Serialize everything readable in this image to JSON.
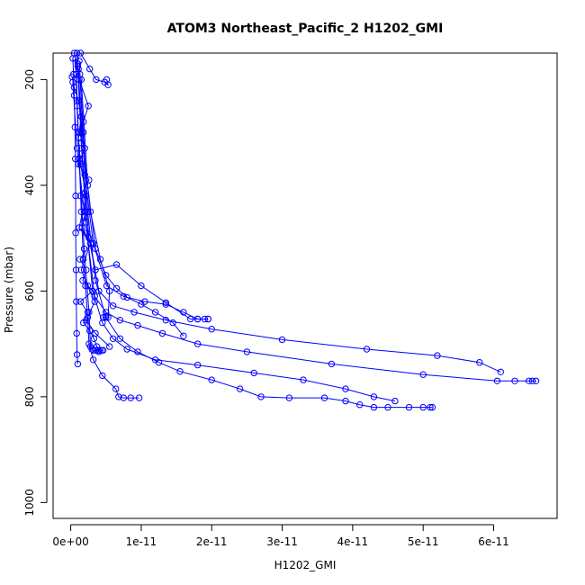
{
  "chart_data": {
    "type": "scatter",
    "title": "ATOM3 Northeast_Pacific_2 H1202_GMI",
    "xlabel": "H1202_GMI",
    "ylabel": "Pressure (mbar)",
    "xlim": [
      -2.5e-12,
      6.9e-11
    ],
    "ylim": [
      1030,
      150
    ],
    "y_reversed": true,
    "x_ticks": [
      0,
      1e-11,
      2e-11,
      3e-11,
      4e-11,
      5e-11,
      6e-11
    ],
    "x_tick_labels": [
      "0e+00",
      "1e-11",
      "2e-11",
      "3e-11",
      "4e-11",
      "5e-11",
      "6e-11"
    ],
    "y_ticks": [
      200,
      400,
      600,
      800,
      1000
    ],
    "y_tick_labels": [
      "200",
      "400",
      "600",
      "800",
      "1000"
    ],
    "grid": false,
    "color": "#0000ff",
    "series": [
      {
        "x": [
          7e-13,
          9e-13,
          1.2e-12,
          1.5e-12,
          1.8e-12,
          2.1e-12,
          2.4e-12,
          2.6e-12,
          3.2e-12,
          4.5e-12,
          6.4e-12,
          6.8e-12,
          7.5e-12,
          8.5e-12,
          9.7e-12
        ],
        "y": [
          160,
          250,
          350,
          450,
          540,
          590,
          650,
          700,
          730,
          760,
          785,
          800,
          802,
          802,
          802
        ]
      },
      {
        "x": [
          1.2e-12,
          1.8e-12,
          2.4e-12,
          3.5e-12,
          5e-12,
          7e-12,
          9.5e-12,
          1.25e-11,
          1.55e-11,
          2e-11,
          2.4e-11,
          2.7e-11,
          3.1e-11,
          3.6e-11,
          3.9e-11,
          4.1e-11,
          4.3e-11,
          4.5e-11,
          4.8e-11,
          5e-11,
          5.1e-11,
          5.13e-11
        ],
        "y": [
          165,
          300,
          450,
          580,
          650,
          690,
          715,
          735,
          752,
          768,
          785,
          800,
          802,
          802,
          808,
          815,
          820,
          820,
          820,
          820,
          820,
          820
        ]
      },
      {
        "x": [
          1e-12,
          1.5e-12,
          2.2e-12,
          3.1e-12,
          4.5e-12,
          6e-12,
          8e-12,
          1.2e-11,
          1.8e-11,
          2.6e-11,
          3.3e-11,
          3.9e-11,
          4.3e-11,
          4.6e-11
        ],
        "y": [
          170,
          320,
          470,
          600,
          660,
          690,
          710,
          730,
          740,
          755,
          768,
          785,
          800,
          808
        ]
      },
      {
        "x": [
          1e-12,
          1.6e-12,
          2.3e-12,
          3.4e-12,
          5e-12,
          7e-12,
          9.5e-12,
          1.3e-11,
          1.8e-11,
          2.5e-11,
          3.7e-11,
          5e-11,
          6.05e-11,
          6.3e-11,
          6.5e-11,
          6.55e-11,
          6.6e-11
        ],
        "y": [
          175,
          340,
          490,
          610,
          640,
          655,
          665,
          680,
          700,
          715,
          738,
          758,
          770,
          770,
          770,
          770,
          770
        ]
      },
      {
        "x": [
          1.1e-12,
          1.7e-12,
          2.6e-12,
          4e-12,
          6e-12,
          9e-12,
          1.35e-11,
          2e-11,
          3e-11,
          4.2e-11,
          5.2e-11,
          5.8e-11,
          6.1e-11
        ],
        "y": [
          180,
          360,
          500,
          600,
          628,
          640,
          655,
          672,
          692,
          710,
          722,
          735,
          753
        ]
      },
      {
        "x": [
          1.3e-12,
          2e-12,
          3.2e-12,
          5.1e-12,
          7.5e-12,
          1.05e-11,
          1.35e-11,
          1.6e-11,
          1.8e-11,
          1.9e-11,
          1.95e-11
        ],
        "y": [
          190,
          380,
          510,
          590,
          610,
          620,
          625,
          640,
          653,
          653,
          653
        ]
      },
      {
        "x": [
          1.5e-12,
          2.4e-12,
          3.5e-12,
          5e-12,
          6.5e-12,
          8e-12,
          1e-11,
          1.2e-11,
          1.45e-11,
          1.6e-11
        ],
        "y": [
          200,
          400,
          520,
          570,
          595,
          612,
          625,
          640,
          660,
          685
        ]
      },
      {
        "x": [
          9e-13,
          1.6e-12,
          2.8e-12,
          4.2e-12,
          5.5e-12,
          5.3e-12,
          5e-12,
          4.6e-12
        ],
        "y": [
          150,
          300,
          450,
          540,
          600,
          650,
          648,
          650
        ]
      },
      {
        "x": [
          1.4e-12,
          2.7e-12,
          3.6e-12,
          4.8e-12,
          5.3e-12,
          5.1e-12
        ],
        "y": [
          150,
          180,
          200,
          205,
          210,
          200
        ]
      },
      {
        "x": [
          8e-13,
          1.2e-12,
          1.9e-12,
          2.6e-12,
          2.8e-12,
          3e-12,
          3.2e-12,
          3.5e-12,
          3.8e-12,
          4.1e-12,
          4.4e-12,
          4.6e-12
        ],
        "y": [
          190,
          350,
          520,
          640,
          705,
          710,
          712,
          712,
          712,
          712,
          712,
          712
        ]
      },
      {
        "x": [
          3e-13,
          4e-13,
          5e-13,
          6e-13,
          6.5e-13,
          7e-13,
          7e-13,
          7.5e-13,
          8e-13,
          8.5e-13,
          9e-13,
          1e-12
        ],
        "y": [
          160,
          190,
          230,
          290,
          350,
          420,
          490,
          560,
          620,
          680,
          720,
          738
        ]
      },
      {
        "x": [
          2e-13,
          5e-13,
          1.1e-12,
          1.5e-12,
          1.2e-12,
          2e-12,
          1.1e-12,
          2.6e-12,
          1.4e-12,
          2.1e-12,
          1.6e-12,
          2.9e-12,
          1.3e-12,
          2.2e-12,
          1.7e-12,
          3.1e-12,
          1.4e-12,
          2.4e-12,
          1.8e-12,
          2.7e-12,
          3.3e-12,
          3.7e-12,
          4e-12
        ],
        "y": [
          195,
          215,
          240,
          270,
          300,
          330,
          360,
          390,
          420,
          450,
          480,
          510,
          540,
          560,
          580,
          600,
          620,
          640,
          660,
          675,
          690,
          705,
          715
        ]
      },
      {
        "x": [
          5e-13,
          1.2e-12,
          2.5e-12,
          1.8e-12,
          1.1e-12,
          1.4e-12,
          2.2e-12,
          1.2e-12,
          2.8e-12,
          1.5e-12,
          2.4e-12,
          3.4e-12,
          2.2e-12,
          3.5e-12,
          5.5e-12
        ],
        "y": [
          150,
          200,
          250,
          280,
          310,
          360,
          420,
          480,
          510,
          560,
          590,
          620,
          655,
          680,
          705
        ]
      },
      {
        "x": [
          3e-13,
          9e-13,
          2e-12,
          3.5e-12,
          6.5e-12,
          1e-11,
          1.35e-11,
          1.7e-11,
          1.8e-11,
          1.95e-11
        ],
        "y": [
          205,
          330,
          460,
          560,
          550,
          590,
          622,
          653,
          653,
          653
        ]
      }
    ]
  }
}
